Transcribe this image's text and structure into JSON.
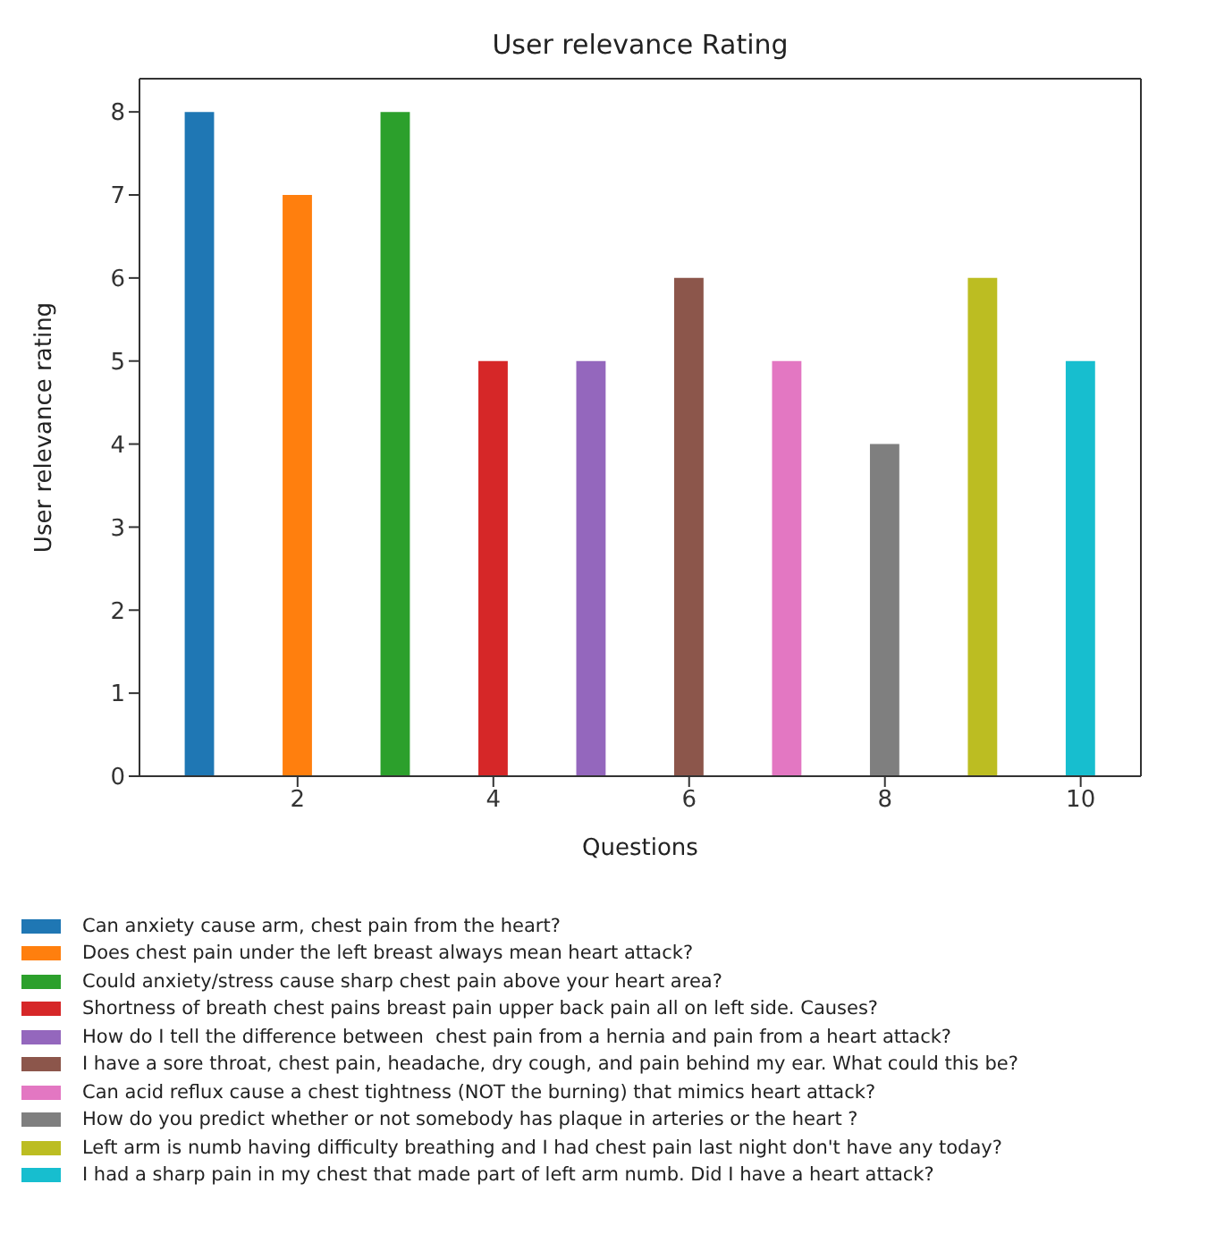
{
  "chart_data": {
    "type": "bar",
    "title": "User relevance Rating",
    "xlabel": "Questions",
    "ylabel": "User relevance rating",
    "xlim": [
      0.385,
      10.615
    ],
    "xticks": [
      2,
      4,
      6,
      8,
      10
    ],
    "ylim": [
      0,
      8.4
    ],
    "yticks": [
      0,
      1,
      2,
      3,
      4,
      5,
      6,
      7,
      8
    ],
    "legend": "bottom",
    "grid": false,
    "series": [
      {
        "name": "Can anxiety cause arm, chest pain from the heart?",
        "color": "#1f77b4",
        "x": [
          1
        ],
        "values": [
          8
        ]
      },
      {
        "name": "Does chest pain under the left breast always mean heart attack?",
        "color": "#ff7f0e",
        "x": [
          2
        ],
        "values": [
          7
        ]
      },
      {
        "name": "Could anxiety/stress cause sharp chest pain above your heart area?",
        "color": "#2ca02c",
        "x": [
          3
        ],
        "values": [
          8
        ]
      },
      {
        "name": "Shortness of breath chest pains breast pain upper back pain all on left side. Causes?",
        "color": "#d62728",
        "x": [
          4
        ],
        "values": [
          5
        ]
      },
      {
        "name": "How do I tell the difference between  chest pain from a hernia and pain from a heart attack?",
        "color": "#9467bd",
        "x": [
          5
        ],
        "values": [
          5
        ]
      },
      {
        "name": "I have a sore throat, chest pain, headache, dry cough, and pain behind my ear. What could this be?",
        "color": "#8c564b",
        "x": [
          6
        ],
        "values": [
          6
        ]
      },
      {
        "name": "Can acid reflux cause a chest tightness (NOT the burning) that mimics heart attack?",
        "color": "#e377c2",
        "x": [
          7
        ],
        "values": [
          5
        ]
      },
      {
        "name": "How do you predict whether or not somebody has plaque in arteries or the heart ?",
        "color": "#7f7f7f",
        "x": [
          8
        ],
        "values": [
          4
        ]
      },
      {
        "name": "Left arm is numb having difficulty breathing and I had chest pain last night don't have any today?",
        "color": "#bcbd22",
        "x": [
          9
        ],
        "values": [
          6
        ]
      },
      {
        "name": "I had a sharp pain in my chest that made part of left arm numb. Did I have a heart attack?",
        "color": "#17becf",
        "x": [
          10
        ],
        "values": [
          5
        ]
      }
    ]
  }
}
